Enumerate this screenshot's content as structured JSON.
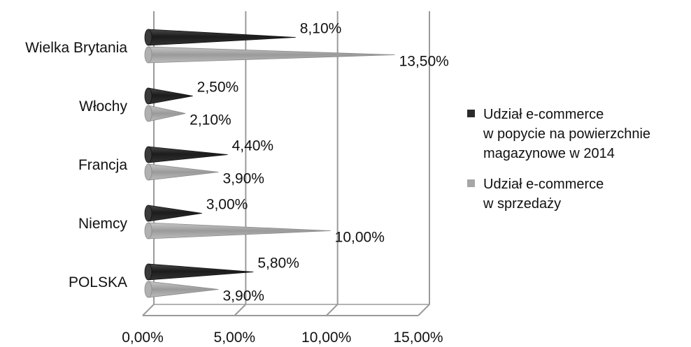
{
  "chart_data": {
    "type": "bar",
    "orientation": "horizontal",
    "style": "3d-cone",
    "categories": [
      "Wielka Brytania",
      "Włochy",
      "Francja",
      "Niemcy",
      "POLSKA"
    ],
    "series": [
      {
        "name": "Udział e-commerce\nw popycie na powierzchnie\nmagazynowe w 2014",
        "color": "#2b2b2b",
        "values": [
          8.1,
          2.5,
          4.4,
          3.0,
          5.8
        ],
        "labels": [
          "8,10%",
          "2,50%",
          "4,40%",
          "3,00%",
          "5,80%"
        ]
      },
      {
        "name": "Udział e-commerce\nw sprzedaży",
        "color": "#a6a6a6",
        "values": [
          13.5,
          2.1,
          3.9,
          10.0,
          3.9
        ],
        "labels": [
          "13,50%",
          "2,10%",
          "3,90%",
          "10,00%",
          "3,90%"
        ]
      }
    ],
    "xlim": [
      0,
      15
    ],
    "xticks": [
      0,
      5,
      10,
      15
    ],
    "xtick_labels": [
      "0,00%",
      "5,00%",
      "10,00%",
      "15,00%"
    ],
    "grid": true,
    "legend_position": "right"
  }
}
